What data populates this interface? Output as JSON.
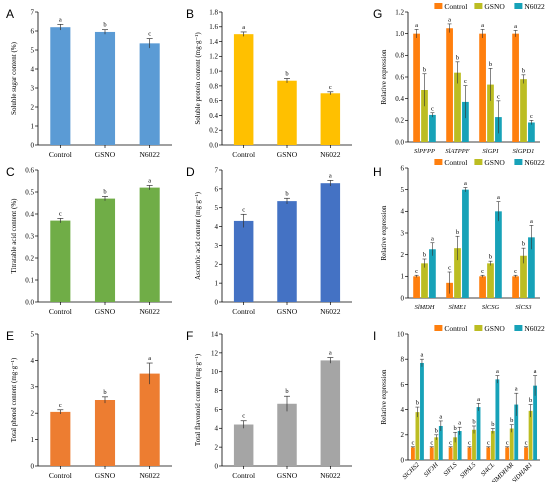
{
  "colors": {
    "blue": "#5B9BD5",
    "yellow": "#FFC000",
    "green": "#70AD47",
    "royal": "#4472C4",
    "orange": "#ED7D31",
    "gray": "#A5A5A5",
    "control": "#FF7F0E",
    "gsno": "#BCBD22",
    "n6022": "#17A2B8"
  },
  "chart_data": [
    {
      "panel": "A",
      "type": "bar",
      "categories": [
        "Control",
        "GSNO",
        "N6022"
      ],
      "values": [
        6.2,
        5.95,
        5.35
      ],
      "errors": [
        0.15,
        0.12,
        0.25
      ],
      "letters": [
        "a",
        "b",
        "c"
      ],
      "ylabel": "Soluble sugar content (%)",
      "ylim": [
        0,
        7
      ],
      "yticks": [
        "0",
        "1",
        "2",
        "3",
        "4",
        "5",
        "6",
        "7"
      ],
      "color_key": "blue"
    },
    {
      "panel": "B",
      "type": "bar",
      "categories": [
        "Control",
        "GSNO",
        "N6022"
      ],
      "values": [
        1.5,
        0.87,
        0.7
      ],
      "errors": [
        0.03,
        0.03,
        0.02
      ],
      "letters": [
        "a",
        "b",
        "c"
      ],
      "ylabel": "Soluble protein content (mg·g⁻¹)",
      "ylim": [
        0,
        1.8
      ],
      "yticks": [
        "0.0",
        "0.2",
        "0.4",
        "0.6",
        "0.8",
        "1.0",
        "1.2",
        "1.4",
        "1.6",
        "1.8"
      ],
      "color_key": "yellow"
    },
    {
      "panel": "C",
      "type": "bar",
      "categories": [
        "Control",
        "GSNO",
        "N6022"
      ],
      "values": [
        0.37,
        0.47,
        0.52
      ],
      "errors": [
        0.01,
        0.01,
        0.01
      ],
      "letters": [
        "c",
        "b",
        "a"
      ],
      "ylabel": "Titratable acid content (%)",
      "ylim": [
        0,
        0.6
      ],
      "yticks": [
        "0.0",
        "0.1",
        "0.2",
        "0.3",
        "0.4",
        "0.5",
        "0.6"
      ],
      "color_key": "green"
    },
    {
      "panel": "D",
      "type": "bar",
      "categories": [
        "Control",
        "GSNO",
        "N6022"
      ],
      "values": [
        4.3,
        5.35,
        6.3
      ],
      "errors": [
        0.35,
        0.15,
        0.15
      ],
      "letters": [
        "c",
        "b",
        "a"
      ],
      "ylabel": "Ascorbic acid content (mg·g⁻¹)",
      "ylim": [
        0,
        7
      ],
      "yticks": [
        "0",
        "1",
        "2",
        "3",
        "4",
        "5",
        "6",
        "7"
      ],
      "color_key": "royal"
    },
    {
      "panel": "E",
      "type": "bar",
      "categories": [
        "Control",
        "GSNO",
        "N6022"
      ],
      "values": [
        2.05,
        2.5,
        3.5
      ],
      "errors": [
        0.08,
        0.12,
        0.4
      ],
      "letters": [
        "c",
        "b",
        "a"
      ],
      "ylabel": "Total phenol content (mg·g⁻¹)",
      "ylim": [
        0,
        5
      ],
      "yticks": [
        "0",
        "1",
        "2",
        "3",
        "4",
        "5"
      ],
      "color_key": "orange"
    },
    {
      "panel": "F",
      "type": "bar",
      "categories": [
        "Control",
        "GSNO",
        "N6022"
      ],
      "values": [
        4.4,
        6.6,
        11.2
      ],
      "errors": [
        0.4,
        0.8,
        0.3
      ],
      "letters": [
        "c",
        "b",
        "a"
      ],
      "ylabel": "Total flavonoid content (mg·g⁻¹)",
      "ylim": [
        0,
        14
      ],
      "yticks": [
        "0",
        "2",
        "4",
        "6",
        "8",
        "10",
        "12",
        "14"
      ],
      "color_key": "gray"
    },
    {
      "panel": "G",
      "type": "bar",
      "categories": [
        "SlPFPP",
        "SlATPPF",
        "SlGPI",
        "SlGPD1"
      ],
      "series": [
        {
          "name": "Control",
          "values": [
            1.0,
            1.05,
            1.0,
            1.0
          ],
          "errors": [
            0.04,
            0.04,
            0.04,
            0.03
          ],
          "letters": [
            "a",
            "a",
            "a",
            "a"
          ],
          "color_key": "control"
        },
        {
          "name": "GSNO",
          "values": [
            0.48,
            0.64,
            0.53,
            0.58
          ],
          "errors": [
            0.15,
            0.1,
            0.15,
            0.04
          ],
          "letters": [
            "b",
            "b",
            "b",
            "b"
          ],
          "color_key": "gsno"
        },
        {
          "name": "N6022",
          "values": [
            0.25,
            0.37,
            0.23,
            0.18
          ],
          "errors": [
            0.02,
            0.15,
            0.15,
            0.02
          ],
          "letters": [
            "c",
            "c",
            "c",
            "c"
          ],
          "color_key": "n6022"
        }
      ],
      "ylabel": "Relative expression",
      "ylim": [
        0,
        1.2
      ],
      "yticks": [
        "0.0",
        "0.2",
        "0.4",
        "0.6",
        "0.8",
        "1.0",
        "1.2"
      ],
      "legend": "top"
    },
    {
      "panel": "H",
      "type": "bar",
      "categories": [
        "SlMDH",
        "SlME1",
        "SlCSG",
        "SlCS3"
      ],
      "series": [
        {
          "name": "Control",
          "values": [
            1.0,
            0.7,
            1.0,
            1.0
          ],
          "errors": [
            0.05,
            0.5,
            0.05,
            0.05
          ],
          "letters": [
            "c",
            "c",
            "c",
            "c"
          ],
          "color_key": "control"
        },
        {
          "name": "GSNO",
          "values": [
            1.6,
            2.3,
            1.6,
            1.95
          ],
          "errors": [
            0.2,
            0.55,
            0.1,
            0.35
          ],
          "letters": [
            "b",
            "b",
            "b",
            "b"
          ],
          "color_key": "gsno"
        },
        {
          "name": "N6022",
          "values": [
            2.25,
            5.0,
            4.0,
            2.8
          ],
          "errors": [
            0.3,
            0.1,
            0.45,
            0.55
          ],
          "letters": [
            "a",
            "a",
            "a",
            "a"
          ],
          "color_key": "n6022"
        }
      ],
      "ylabel": "Relative expression",
      "ylim": [
        0,
        6
      ],
      "yticks": [
        "0",
        "1",
        "2",
        "3",
        "4",
        "5",
        "6"
      ],
      "legend": "top"
    },
    {
      "panel": "I",
      "type": "bar",
      "categories": [
        "SlCHS2",
        "SlF3H",
        "SlFLS",
        "SlPAL5",
        "Sl4CL",
        "SlMDHAR",
        "SlDHAR1"
      ],
      "series": [
        {
          "name": "Control",
          "values": [
            1.0,
            1.0,
            1.0,
            1.0,
            1.0,
            1.0,
            1.0
          ],
          "errors": [
            0.05,
            0.05,
            0.05,
            0.05,
            0.05,
            0.05,
            0.05
          ],
          "letters": [
            "c",
            "c",
            "c",
            "c",
            "c",
            "c",
            "c"
          ],
          "color_key": "control"
        },
        {
          "name": "GSNO",
          "values": [
            3.8,
            1.8,
            1.8,
            2.4,
            2.3,
            2.5,
            3.9
          ],
          "errors": [
            0.4,
            0.2,
            0.4,
            0.3,
            0.2,
            0.3,
            0.5
          ],
          "letters": [
            "b",
            "b",
            "b",
            "b",
            "b",
            "b",
            "b"
          ],
          "color_key": "gsno"
        },
        {
          "name": "N6022",
          "values": [
            7.7,
            2.7,
            2.3,
            4.2,
            6.4,
            4.4,
            5.9
          ],
          "errors": [
            0.3,
            0.4,
            0.3,
            0.3,
            0.3,
            0.9,
            0.8
          ],
          "letters": [
            "a",
            "a",
            "a",
            "a",
            "a",
            "a",
            "a"
          ],
          "color_key": "n6022"
        }
      ],
      "ylabel": "Relative expression",
      "ylim": [
        0,
        10
      ],
      "yticks": [
        "0",
        "2",
        "4",
        "6",
        "8",
        "10"
      ],
      "legend": "top"
    }
  ]
}
